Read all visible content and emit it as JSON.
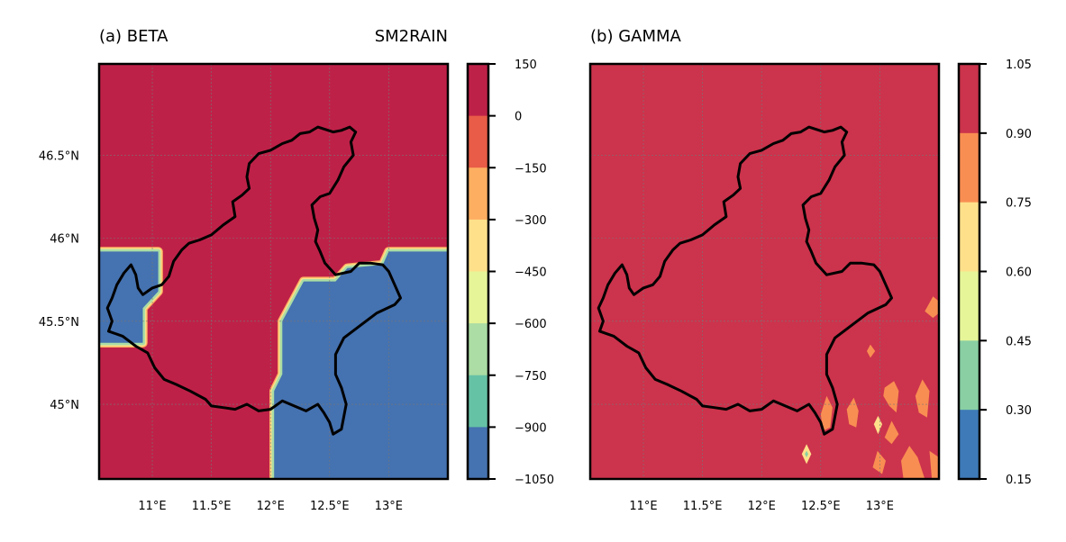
{
  "chart_data": [
    {
      "type": "heatmap",
      "panel_label": "(a) BETA",
      "title_right": "SM2RAIN",
      "xlim": [
        10.55,
        13.5
      ],
      "ylim": [
        44.55,
        47.05
      ],
      "x_ticks": [
        {
          "value": 11.0,
          "label": "11°E"
        },
        {
          "value": 11.5,
          "label": "11.5°E"
        },
        {
          "value": 12.0,
          "label": "12°E"
        },
        {
          "value": 12.5,
          "label": "12.5°E"
        },
        {
          "value": 13.0,
          "label": "13°E"
        }
      ],
      "y_ticks": [
        {
          "value": 45.0,
          "label": "45°N"
        },
        {
          "value": 45.5,
          "label": "45.5°N"
        },
        {
          "value": 46.0,
          "label": "46°N"
        },
        {
          "value": 46.5,
          "label": "46.5°N"
        }
      ],
      "grid": true,
      "background_value": 150,
      "low_value_regions": [
        {
          "value": -1050,
          "boundary": [
            [
              10.55,
              45.92
            ],
            [
              11.05,
              45.92
            ],
            [
              11.05,
              45.68
            ],
            [
              10.92,
              45.58
            ],
            [
              10.92,
              45.37
            ],
            [
              10.55,
              45.37
            ]
          ]
        },
        {
          "value": -1050,
          "boundary": [
            [
              12.03,
              44.55
            ],
            [
              12.03,
              45.08
            ],
            [
              12.1,
              45.18
            ],
            [
              12.1,
              45.5
            ],
            [
              12.28,
              45.74
            ],
            [
              12.55,
              45.74
            ],
            [
              12.65,
              45.82
            ],
            [
              12.95,
              45.84
            ],
            [
              13.0,
              45.92
            ],
            [
              13.5,
              45.92
            ],
            [
              13.5,
              44.55
            ]
          ]
        }
      ],
      "colorbar": {
        "ticks": [
          "150",
          "0",
          "−150",
          "−300",
          "−450",
          "−600",
          "−750",
          "−900",
          "−1050"
        ],
        "bands_top_to_bottom": [
          "#be2148",
          "#e95c47",
          "#fdae61",
          "#fee08b",
          "#e6f598",
          "#abdda4",
          "#66c2a5",
          "#4572b0"
        ]
      }
    },
    {
      "type": "heatmap",
      "panel_label": "(b) GAMMA",
      "xlim": [
        10.55,
        13.5
      ],
      "ylim": [
        44.55,
        47.05
      ],
      "x_ticks": [
        {
          "value": 11.0,
          "label": "11°E"
        },
        {
          "value": 11.5,
          "label": "11.5°E"
        },
        {
          "value": 12.0,
          "label": "12°E"
        },
        {
          "value": 12.5,
          "label": "12.5°E"
        },
        {
          "value": 13.0,
          "label": "13°E"
        }
      ],
      "y_ticks": [],
      "grid": true,
      "background_value": 0.95,
      "patches": [
        {
          "value": 0.82,
          "boundary": [
            [
              13.45,
              45.65
            ],
            [
              13.5,
              45.62
            ],
            [
              13.5,
              45.55
            ],
            [
              13.45,
              45.52
            ],
            [
              13.38,
              45.56
            ]
          ]
        },
        {
          "value": 0.82,
          "boundary": [
            [
              12.92,
              45.36
            ],
            [
              12.96,
              45.32
            ],
            [
              12.92,
              45.28
            ],
            [
              12.89,
              45.32
            ]
          ]
        },
        {
          "value": 0.82,
          "boundary": [
            [
              12.55,
              45.05
            ],
            [
              12.6,
              44.98
            ],
            [
              12.58,
              44.86
            ],
            [
              12.52,
              44.84
            ],
            [
              12.5,
              44.94
            ]
          ]
        },
        {
          "value": 0.82,
          "boundary": [
            [
              12.78,
              45.04
            ],
            [
              12.82,
              44.96
            ],
            [
              12.8,
              44.86
            ],
            [
              12.74,
              44.88
            ],
            [
              12.72,
              44.97
            ]
          ]
        },
        {
          "value": 0.82,
          "boundary": [
            [
              13.12,
              45.14
            ],
            [
              13.16,
              45.08
            ],
            [
              13.14,
              44.95
            ],
            [
              13.08,
              44.99
            ],
            [
              13.03,
              45.05
            ],
            [
              13.04,
              45.1
            ]
          ]
        },
        {
          "value": 0.82,
          "boundary": [
            [
              13.36,
              45.15
            ],
            [
              13.42,
              45.08
            ],
            [
              13.4,
              44.92
            ],
            [
              13.33,
              44.95
            ],
            [
              13.3,
              45.05
            ]
          ]
        },
        {
          "value": 0.82,
          "boundary": [
            [
              13.1,
              44.9
            ],
            [
              13.16,
              44.82
            ],
            [
              13.1,
              44.76
            ],
            [
              13.04,
              44.8
            ]
          ]
        },
        {
          "value": 0.82,
          "boundary": [
            [
              12.98,
              44.72
            ],
            [
              13.05,
              44.66
            ],
            [
              13.02,
              44.58
            ],
            [
              12.94,
              44.62
            ]
          ]
        },
        {
          "value": 0.82,
          "boundary": [
            [
              13.25,
              44.75
            ],
            [
              13.32,
              44.68
            ],
            [
              13.38,
              44.55
            ],
            [
              13.2,
              44.55
            ],
            [
              13.18,
              44.66
            ]
          ]
        },
        {
          "value": 0.82,
          "boundary": [
            [
              13.42,
              44.72
            ],
            [
              13.5,
              44.68
            ],
            [
              13.5,
              44.55
            ],
            [
              13.44,
              44.55
            ]
          ]
        },
        {
          "value": 0.68,
          "boundary": [
            [
              12.985,
              44.93
            ],
            [
              13.02,
              44.88
            ],
            [
              12.985,
              44.82
            ],
            [
              12.95,
              44.88
            ]
          ]
        },
        {
          "value": 0.68,
          "boundary": [
            [
              12.38,
              44.76
            ],
            [
              12.42,
              44.7
            ],
            [
              12.38,
              44.64
            ],
            [
              12.34,
              44.7
            ]
          ]
        },
        {
          "value": 0.38,
          "boundary": [
            [
              12.38,
              44.72
            ],
            [
              12.395,
              44.7
            ],
            [
              12.38,
              44.68
            ],
            [
              12.365,
              44.7
            ]
          ]
        }
      ],
      "colorbar": {
        "ticks": [
          "1.05",
          "0.90",
          "0.75",
          "0.60",
          "0.45",
          "0.30",
          "0.15"
        ],
        "bands_top_to_bottom": [
          "#cc334c",
          "#f98e52",
          "#fee08b",
          "#e6f598",
          "#89cfa3",
          "#3e7ab8"
        ]
      }
    }
  ],
  "region_outline": [
    [
      12.67,
      46.67
    ],
    [
      12.6,
      46.65
    ],
    [
      12.53,
      46.64
    ],
    [
      12.4,
      46.67
    ],
    [
      12.33,
      46.64
    ],
    [
      12.25,
      46.63
    ],
    [
      12.18,
      46.59
    ],
    [
      12.1,
      46.57
    ],
    [
      12.0,
      46.53
    ],
    [
      11.9,
      46.51
    ],
    [
      11.82,
      46.45
    ],
    [
      11.8,
      46.37
    ],
    [
      11.82,
      46.3
    ],
    [
      11.76,
      46.26
    ],
    [
      11.68,
      46.22
    ],
    [
      11.7,
      46.13
    ],
    [
      11.6,
      46.08
    ],
    [
      11.5,
      46.02
    ],
    [
      11.4,
      45.99
    ],
    [
      11.31,
      45.97
    ],
    [
      11.25,
      45.93
    ],
    [
      11.18,
      45.86
    ],
    [
      11.14,
      45.77
    ],
    [
      11.08,
      45.72
    ],
    [
      11.0,
      45.7
    ],
    [
      10.92,
      45.66
    ],
    [
      10.88,
      45.7
    ],
    [
      10.86,
      45.78
    ],
    [
      10.82,
      45.84
    ],
    [
      10.76,
      45.79
    ],
    [
      10.7,
      45.72
    ],
    [
      10.66,
      45.64
    ],
    [
      10.62,
      45.58
    ],
    [
      10.66,
      45.5
    ],
    [
      10.63,
      45.44
    ],
    [
      10.75,
      45.41
    ],
    [
      10.86,
      45.35
    ],
    [
      10.96,
      45.31
    ],
    [
      11.02,
      45.22
    ],
    [
      11.1,
      45.15
    ],
    [
      11.2,
      45.12
    ],
    [
      11.32,
      45.08
    ],
    [
      11.45,
      45.03
    ],
    [
      11.5,
      44.99
    ],
    [
      11.6,
      44.98
    ],
    [
      11.7,
      44.97
    ],
    [
      11.8,
      45.0
    ],
    [
      11.9,
      44.96
    ],
    [
      12.0,
      44.97
    ],
    [
      12.1,
      45.02
    ],
    [
      12.2,
      44.99
    ],
    [
      12.3,
      44.96
    ],
    [
      12.4,
      45.0
    ],
    [
      12.45,
      44.95
    ],
    [
      12.5,
      44.89
    ],
    [
      12.53,
      44.82
    ],
    [
      12.6,
      44.85
    ],
    [
      12.64,
      45.0
    ],
    [
      12.6,
      45.1
    ],
    [
      12.55,
      45.18
    ],
    [
      12.55,
      45.3
    ],
    [
      12.62,
      45.4
    ],
    [
      12.75,
      45.47
    ],
    [
      12.9,
      45.55
    ],
    [
      13.05,
      45.6
    ],
    [
      13.1,
      45.64
    ],
    [
      13.05,
      45.72
    ],
    [
      13.0,
      45.8
    ],
    [
      12.95,
      45.84
    ],
    [
      12.85,
      45.85
    ],
    [
      12.75,
      45.85
    ],
    [
      12.68,
      45.8
    ],
    [
      12.55,
      45.78
    ],
    [
      12.46,
      45.85
    ],
    [
      12.42,
      45.92
    ],
    [
      12.38,
      45.98
    ],
    [
      12.4,
      46.05
    ],
    [
      12.37,
      46.12
    ],
    [
      12.35,
      46.2
    ],
    [
      12.42,
      46.25
    ],
    [
      12.5,
      46.27
    ],
    [
      12.57,
      46.35
    ],
    [
      12.62,
      46.43
    ],
    [
      12.7,
      46.5
    ],
    [
      12.68,
      46.58
    ],
    [
      12.72,
      46.64
    ]
  ]
}
